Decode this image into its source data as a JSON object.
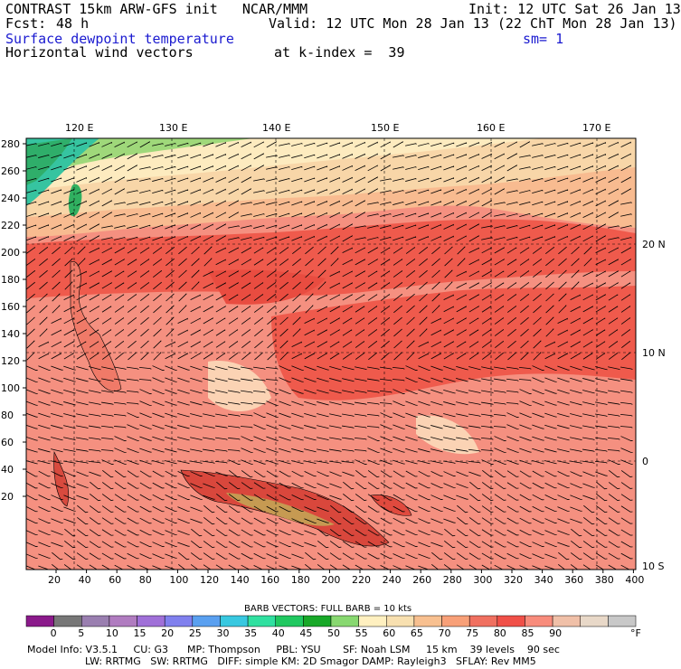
{
  "header": {
    "title": "CONTRAST 15km ARW-GFS init   NCAR/MMM",
    "init": "Init: 12 UTC Sat 26 Jan 13",
    "fcst_label": "Fcst:",
    "fcst_value": "48 h",
    "valid": "Valid: 12 UTC Mon 28 Jan 13 (22 ChT Mon 28 Jan 13)",
    "field1": "Surface dewpoint temperature",
    "sm": "sm= 1",
    "field2": "Horizontal wind vectors",
    "kindex": "at k-index =  39"
  },
  "map": {
    "lon_labels": [
      "120 E",
      "130 E",
      "140 E",
      "150 E",
      "160 E",
      "170 E"
    ],
    "lat_labels": [
      "20 N",
      "10 N",
      "0",
      "10 S"
    ],
    "y_ticks": [
      "280",
      "260",
      "240",
      "220",
      "200",
      "180",
      "160",
      "140",
      "120",
      "100",
      "80",
      "60",
      "40",
      "20"
    ],
    "x_ticks": [
      "20",
      "40",
      "60",
      "80",
      "100",
      "120",
      "140",
      "160",
      "180",
      "200",
      "220",
      "240",
      "260",
      "280",
      "300",
      "320",
      "340",
      "360",
      "380",
      "400"
    ]
  },
  "legend": {
    "barb_text": "BARB VECTORS:  FULL BARB = 10 kts",
    "labels": [
      "0",
      "5",
      "10",
      "15",
      "20",
      "25",
      "30",
      "35",
      "40",
      "45",
      "50",
      "55",
      "60",
      "65",
      "70",
      "75",
      "80",
      "85",
      "90"
    ],
    "unit": "°F",
    "colors": [
      "#8b1a8b",
      "#777777",
      "#9a7fb0",
      "#b07cc0",
      "#a070d8",
      "#8080ee",
      "#5aa0f0",
      "#38c8e0",
      "#30e0a0",
      "#20c860",
      "#18a828",
      "#88d870",
      "#fff0c0",
      "#f8e0b0",
      "#f8c090",
      "#f8a078",
      "#f07060",
      "#f05048",
      "#f88c7c",
      "#f0c0a8",
      "#e8d8c8",
      "#c8c8c8"
    ]
  },
  "footer": {
    "line1": "Model Info: V3.5.1     CU: G3      MP: Thompson     PBL: YSU       SF: Noah LSM     15 km    39 levels    90 sec",
    "line2": "LW: RRTMG   SW: RRTMG   DIFF: simple KM: 2D Smagor DAMP: Rayleigh3   SFLAY: Rev MM5"
  }
}
